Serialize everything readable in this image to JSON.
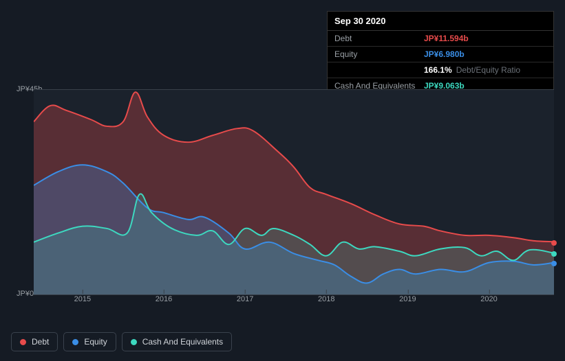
{
  "tooltip": {
    "date": "Sep 30 2020",
    "rows": [
      {
        "label": "Debt",
        "value": "JP¥11.594b",
        "color": "#e84b4b"
      },
      {
        "label": "Equity",
        "value": "JP¥6.980b",
        "color": "#3a8ee6"
      },
      {
        "label_suffix": "Debt/Equity Ratio",
        "value": "166.1%"
      },
      {
        "label": "Cash And Equivalents",
        "value": "JP¥9.063b",
        "color": "#3dd9c0"
      }
    ]
  },
  "chart": {
    "type": "area",
    "background_color": "#1b222c",
    "page_background": "#151b24",
    "grid_color": "#394049",
    "text_color": "#9aa0a6",
    "y_axis": {
      "min": 0,
      "max": 45,
      "labels": [
        "JP¥45b",
        "JP¥0"
      ]
    },
    "x_axis": {
      "min": 2014.4,
      "max": 2020.8,
      "ticks": [
        2015,
        2016,
        2017,
        2018,
        2019,
        2020
      ]
    },
    "series": [
      {
        "name": "Debt",
        "color": "#e84b4b",
        "fill_opacity": 0.3,
        "line_width": 2,
        "points": [
          [
            2014.4,
            38
          ],
          [
            2014.6,
            41.5
          ],
          [
            2014.8,
            40.5
          ],
          [
            2015.1,
            38.5
          ],
          [
            2015.3,
            37
          ],
          [
            2015.5,
            38
          ],
          [
            2015.65,
            44.5
          ],
          [
            2015.8,
            39
          ],
          [
            2016.0,
            35
          ],
          [
            2016.3,
            33.5
          ],
          [
            2016.6,
            35
          ],
          [
            2016.9,
            36.5
          ],
          [
            2017.1,
            36
          ],
          [
            2017.4,
            31.5
          ],
          [
            2017.6,
            28
          ],
          [
            2017.8,
            23.5
          ],
          [
            2018.0,
            22
          ],
          [
            2018.3,
            20
          ],
          [
            2018.6,
            17.5
          ],
          [
            2018.9,
            15.5
          ],
          [
            2019.2,
            15
          ],
          [
            2019.4,
            14
          ],
          [
            2019.7,
            13
          ],
          [
            2020.0,
            13
          ],
          [
            2020.3,
            12.5
          ],
          [
            2020.55,
            11.8
          ],
          [
            2020.8,
            11.6
          ]
        ],
        "end_marker": true
      },
      {
        "name": "Equity",
        "color": "#3a8ee6",
        "fill_opacity": 0.28,
        "line_width": 2,
        "points": [
          [
            2014.4,
            24
          ],
          [
            2014.7,
            27
          ],
          [
            2015.0,
            28.5
          ],
          [
            2015.3,
            27
          ],
          [
            2015.5,
            24.5
          ],
          [
            2015.8,
            19
          ],
          [
            2016.0,
            18
          ],
          [
            2016.3,
            16.5
          ],
          [
            2016.5,
            17
          ],
          [
            2016.8,
            13.5
          ],
          [
            2017.0,
            10
          ],
          [
            2017.3,
            11.5
          ],
          [
            2017.6,
            9
          ],
          [
            2017.9,
            7.5
          ],
          [
            2018.1,
            6.5
          ],
          [
            2018.3,
            4
          ],
          [
            2018.5,
            2.5
          ],
          [
            2018.7,
            4.5
          ],
          [
            2018.9,
            5.5
          ],
          [
            2019.1,
            4.5
          ],
          [
            2019.4,
            5.5
          ],
          [
            2019.7,
            5
          ],
          [
            2020.0,
            7
          ],
          [
            2020.3,
            7.3
          ],
          [
            2020.55,
            6.5
          ],
          [
            2020.8,
            7.0
          ]
        ],
        "end_marker": true
      },
      {
        "name": "Cash And Equivalents",
        "color": "#3dd9c0",
        "fill_opacity": 0.18,
        "line_width": 2,
        "points": [
          [
            2014.4,
            11.5
          ],
          [
            2014.7,
            13.5
          ],
          [
            2015.0,
            15
          ],
          [
            2015.3,
            14.5
          ],
          [
            2015.55,
            13.5
          ],
          [
            2015.7,
            22
          ],
          [
            2015.85,
            18
          ],
          [
            2016.1,
            14.5
          ],
          [
            2016.4,
            13
          ],
          [
            2016.6,
            14
          ],
          [
            2016.8,
            11
          ],
          [
            2017.0,
            14.5
          ],
          [
            2017.2,
            13
          ],
          [
            2017.35,
            14.5
          ],
          [
            2017.6,
            13
          ],
          [
            2017.8,
            11
          ],
          [
            2018.0,
            8.5
          ],
          [
            2018.2,
            11.5
          ],
          [
            2018.4,
            10
          ],
          [
            2018.6,
            10.5
          ],
          [
            2018.9,
            9.5
          ],
          [
            2019.1,
            8.5
          ],
          [
            2019.4,
            10
          ],
          [
            2019.7,
            10.3
          ],
          [
            2019.9,
            8.5
          ],
          [
            2020.1,
            9.5
          ],
          [
            2020.3,
            7.5
          ],
          [
            2020.5,
            9.8
          ],
          [
            2020.8,
            9.1
          ]
        ],
        "end_marker": true
      }
    ]
  },
  "legend": [
    {
      "label": "Debt",
      "color": "#e84b4b"
    },
    {
      "label": "Equity",
      "color": "#3a8ee6"
    },
    {
      "label": "Cash And Equivalents",
      "color": "#3dd9c0"
    }
  ]
}
